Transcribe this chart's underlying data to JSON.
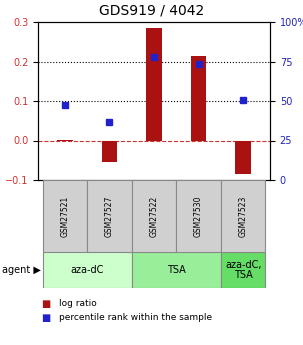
{
  "title": "GDS919 / 4042",
  "samples": [
    "GSM27521",
    "GSM27527",
    "GSM27522",
    "GSM27530",
    "GSM27523"
  ],
  "log_ratios": [
    0.002,
    -0.055,
    0.285,
    0.215,
    -0.085
  ],
  "percentile_ranks_right": [
    47.5,
    36.5,
    78.0,
    73.5,
    50.5
  ],
  "agent_groups": [
    {
      "label": "aza-dC",
      "samples": [
        0,
        1
      ],
      "color": "#ccffcc"
    },
    {
      "label": "TSA",
      "samples": [
        2,
        3
      ],
      "color": "#99ee99"
    },
    {
      "label": "aza-dC,\nTSA",
      "samples": [
        4
      ],
      "color": "#66dd66"
    }
  ],
  "bar_color": "#aa1111",
  "dot_color": "#2222cc",
  "ylim_left": [
    -0.1,
    0.3
  ],
  "ylim_right": [
    0,
    100
  ],
  "yticks_left": [
    -0.1,
    0.0,
    0.1,
    0.2,
    0.3
  ],
  "yticks_right": [
    0,
    25,
    50,
    75,
    100
  ],
  "hlines": [
    0.0,
    0.1,
    0.2
  ],
  "hline_styles": [
    "--",
    ":",
    ":"
  ],
  "hline_colors": [
    "#cc3333",
    "#000000",
    "#000000"
  ],
  "background_color": "#ffffff",
  "bar_width": 0.35,
  "legend_items": [
    "log ratio",
    "percentile rank within the sample"
  ],
  "title_fontsize": 10,
  "tick_fontsize": 7,
  "sample_fontsize": 5.5,
  "agent_fontsize": 7
}
